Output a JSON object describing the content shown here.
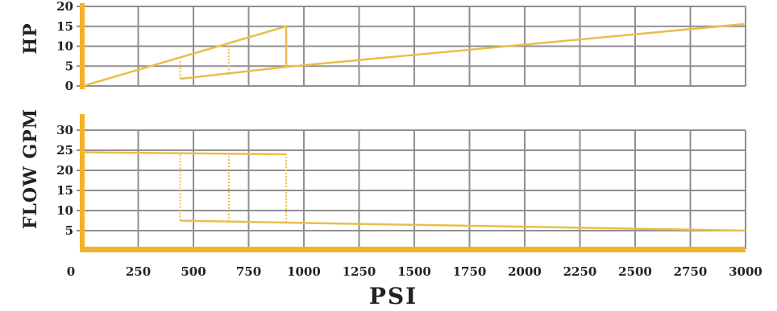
{
  "chart_data": {
    "type": "line",
    "xlabel": "PSI",
    "x_ticks": [
      0,
      250,
      500,
      750,
      1000,
      1250,
      1500,
      1750,
      2000,
      2250,
      2500,
      2750,
      3000
    ],
    "xlim": [
      0,
      3000
    ],
    "grid": true,
    "colors": {
      "axis": "#f3b22a",
      "series": "#e9be4a",
      "grid": "#8f8f8f"
    },
    "charts": [
      {
        "id": "hp",
        "ylabel": "HP",
        "ylim": [
          0,
          20
        ],
        "y_ticks": [
          0,
          5,
          10,
          15,
          20
        ],
        "series": [
          {
            "style": "solid",
            "x": [
              0,
              920,
              920,
              3000
            ],
            "y": [
              0,
              15,
              4.8,
              15.6
            ]
          },
          {
            "style": "solid",
            "x": [
              440,
              920
            ],
            "y": [
              1.8,
              4.8
            ]
          },
          {
            "style": "dotted",
            "x": [
              440,
              440
            ],
            "y": [
              1.8,
              6.7
            ]
          },
          {
            "style": "dotted",
            "x": [
              660,
              660
            ],
            "y": [
              3.2,
              10.5
            ]
          }
        ]
      },
      {
        "id": "flow",
        "ylabel": "FLOW GPM",
        "ylim": [
          0,
          33
        ],
        "y_ticks": [
          5,
          10,
          15,
          20,
          25,
          30
        ],
        "series": [
          {
            "style": "solid",
            "x": [
              0,
              920
            ],
            "y": [
              24.5,
              24.0
            ]
          },
          {
            "style": "solid",
            "x": [
              440,
              920,
              3000
            ],
            "y": [
              7.5,
              7.0,
              5.0
            ]
          },
          {
            "style": "dotted",
            "x": [
              440,
              440
            ],
            "y": [
              7.5,
              24.3
            ]
          },
          {
            "style": "dotted",
            "x": [
              660,
              660
            ],
            "y": [
              7.2,
              24.2
            ]
          },
          {
            "style": "dotted",
            "x": [
              920,
              920
            ],
            "y": [
              7.0,
              24.0
            ]
          }
        ]
      }
    ]
  }
}
